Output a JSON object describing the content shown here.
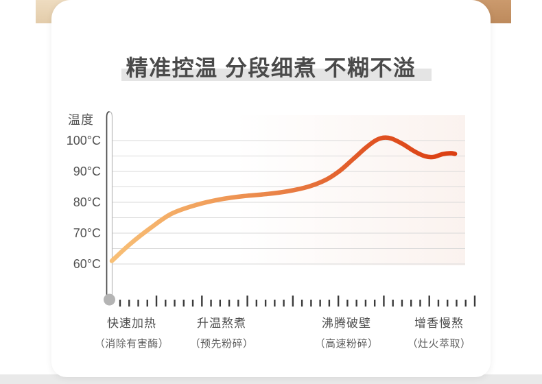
{
  "header": {
    "title": "精准控温 分段细煮 不糊不溢"
  },
  "colors": {
    "title_text": "#4a4a4a",
    "title_highlight": "#e4e4e4",
    "gridline": "#d9d9d9",
    "axis_outline": "#4a4a4a",
    "bulb": "#b4b4b4",
    "tick": "#3a3a3a",
    "plot_tint": "#f9eee9"
  },
  "chart_data": {
    "type": "line",
    "title": "精准控温 分段细煮 不糊不溢",
    "ylabel": "温度",
    "xlabel": "",
    "y_axis": {
      "unit": "°C",
      "tick_values": [
        100,
        90,
        80,
        70,
        60
      ],
      "tick_labels": [
        "100°C",
        "90°C",
        "80°C",
        "70°C",
        "60°C"
      ],
      "range": [
        60,
        100
      ],
      "grid_step": 5,
      "grid_on": true,
      "axis_style": "thermometer"
    },
    "x_axis": {
      "style": "ruler-ticks",
      "tick_count": 40,
      "tall_every": 5,
      "numeric_labels": false
    },
    "series": [
      {
        "name": "temperature-curve",
        "points_pct_temp": [
          [
            0,
            61.0
          ],
          [
            5.2,
            66.5
          ],
          [
            11.1,
            71.8
          ],
          [
            16.9,
            76.3
          ],
          [
            23.7,
            79.1
          ],
          [
            30.5,
            80.9
          ],
          [
            37.3,
            82.0
          ],
          [
            44.1,
            82.7
          ],
          [
            49.9,
            83.6
          ],
          [
            55.7,
            85.1
          ],
          [
            60.6,
            87.3
          ],
          [
            64.5,
            90.2
          ],
          [
            68.3,
            94.0
          ],
          [
            71.8,
            97.6
          ],
          [
            74.6,
            100.0
          ],
          [
            76.7,
            100.9
          ],
          [
            79.0,
            100.7
          ],
          [
            82.3,
            98.9
          ],
          [
            85.8,
            96.4
          ],
          [
            88.7,
            94.9
          ],
          [
            91.1,
            94.7
          ],
          [
            93.6,
            95.6
          ],
          [
            95.9,
            95.9
          ],
          [
            97.1,
            95.7
          ]
        ],
        "gradient": [
          "#F8C077",
          "#F1A05C",
          "#E87C42",
          "#E05524",
          "#DB3E11"
        ]
      }
    ],
    "phases": [
      {
        "label": "快速加热",
        "sub": "（消除有害酶）"
      },
      {
        "label": "升温熬煮",
        "sub": "（预先粉碎）"
      },
      {
        "label": "沸腾破壁",
        "sub": "（高速粉碎）"
      },
      {
        "label": "增香慢熬",
        "sub": "（灶火萃取）"
      }
    ]
  }
}
